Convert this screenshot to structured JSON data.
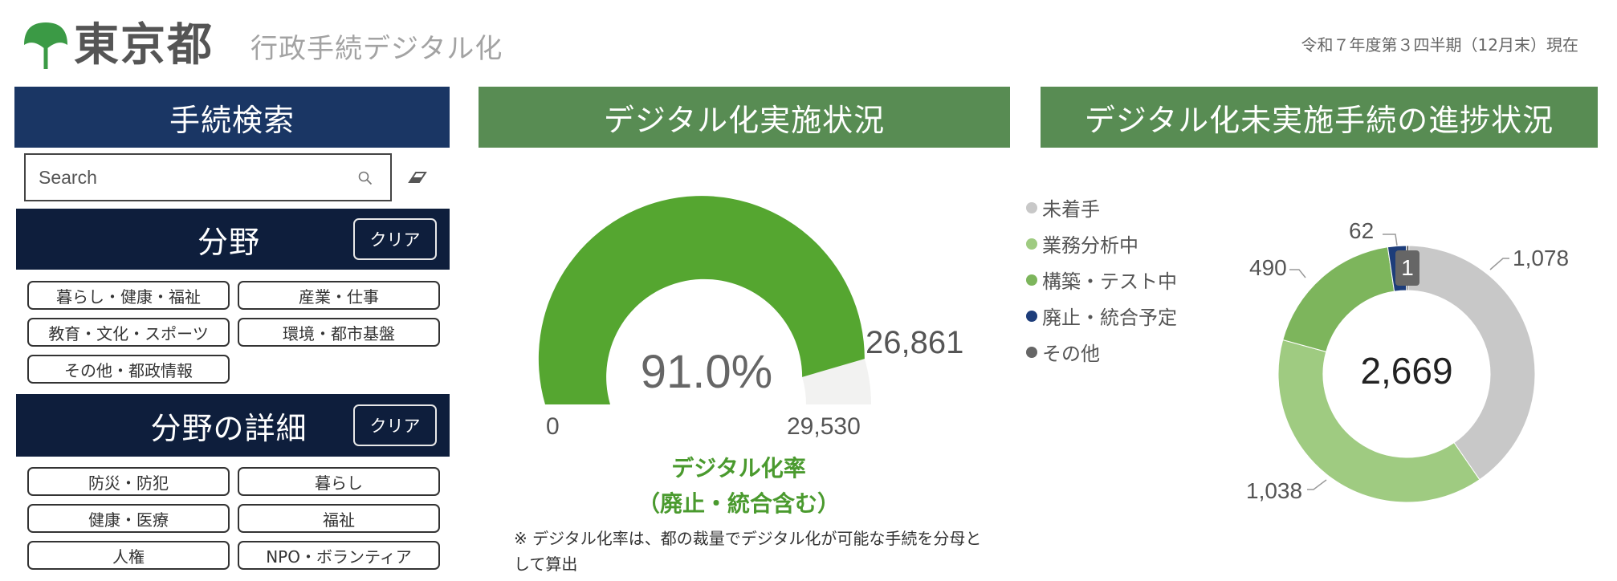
{
  "header": {
    "org": "東京都",
    "subtitle": "行政手続デジタル化",
    "as_of": "令和７年度第３四半期（12月末）現在"
  },
  "search_panel": {
    "title": "手続検索",
    "search_placeholder": "Search",
    "field_title": "分野",
    "field_clear": "クリア",
    "field_chips": [
      "暮らし・健康・福祉",
      "産業・仕事",
      "教育・文化・スポーツ",
      "環境・都市基盤",
      "その他・都政情報"
    ],
    "detail_title": "分野の詳細",
    "detail_clear": "クリア",
    "detail_chips": [
      "防災・防犯",
      "暮らし",
      "健康・医療",
      "福祉",
      "人権",
      "NPO・ボランティア"
    ]
  },
  "colors": {
    "navy": "#1a3664",
    "dark_navy": "#0e1e3c",
    "section_green": "#588c53",
    "gauge_green": "#55a630",
    "gauge_rest": "#f2f2f1",
    "not_started": "#c8c8c8",
    "analyzing": "#9fcb81",
    "building": "#7db55c",
    "abolish": "#1d3d7a",
    "other": "#666666"
  },
  "gauge_section": {
    "title": "デジタル化実施状況",
    "value_label": "91.0%",
    "total_label": "26,861",
    "min_label": "0",
    "max_label": "29,530",
    "metric_label_line1": "デジタル化率",
    "metric_label_line2": "（廃止・統合含む）",
    "note": "※ デジタル化率は、都の裁量でデジタル化が可能な手続を分母として算出"
  },
  "donut_section": {
    "title": "デジタル化未実施手続の進捗状況",
    "center_label": "2,669"
  },
  "chart_data": [
    {
      "type": "gauge",
      "value": 26861,
      "min": 0,
      "max": 29530,
      "percent": 91.0,
      "value_label": "26,861",
      "percent_label": "91.0%"
    },
    {
      "type": "pie",
      "donut": true,
      "total": 2669,
      "legend_position": "left",
      "series": [
        {
          "name": "未着手",
          "value": 1078,
          "label": "1,078",
          "color": "#c8c8c8"
        },
        {
          "name": "業務分析中",
          "value": 1038,
          "label": "1,038",
          "color": "#9fcb81"
        },
        {
          "name": "構築・テスト中",
          "value": 490,
          "label": "490",
          "color": "#7db55c"
        },
        {
          "name": "廃止・統合予定",
          "value": 62,
          "label": "62",
          "color": "#1d3d7a"
        },
        {
          "name": "その他",
          "value": 1,
          "label": "1",
          "color": "#666666"
        }
      ]
    }
  ]
}
